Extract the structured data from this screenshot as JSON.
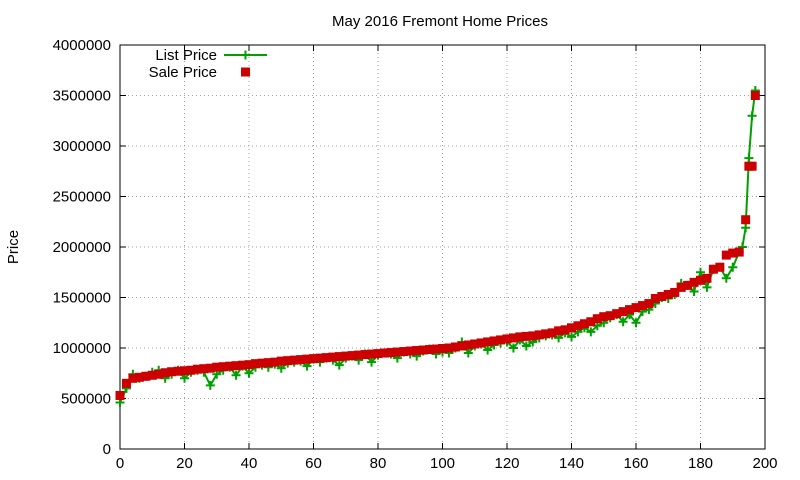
{
  "chart_data": {
    "type": "scatter",
    "title": "May 2016 Fremont Home Prices",
    "xlabel": "",
    "ylabel": "Price",
    "xlim": [
      0,
      200
    ],
    "ylim": [
      0,
      4000000
    ],
    "x_ticks": [
      0,
      20,
      40,
      60,
      80,
      100,
      120,
      140,
      160,
      180,
      200
    ],
    "y_ticks": [
      0,
      500000,
      1000000,
      1500000,
      2000000,
      2500000,
      3000000,
      3500000,
      4000000
    ],
    "x_tick_labels": [
      "0",
      "20",
      "40",
      "60",
      "80",
      "100",
      "120",
      "140",
      "160",
      "180",
      "200"
    ],
    "y_tick_labels": [
      "0",
      "500000",
      "1000000",
      "1500000",
      "2000000",
      "2500000",
      "3000000",
      "3500000",
      "4000000"
    ],
    "grid": true,
    "legend_position": "top-left",
    "series": [
      {
        "name": "List Price",
        "style": "line with plus markers",
        "color": "#00a000",
        "x": [
          0,
          2,
          4,
          6,
          8,
          10,
          12,
          14,
          16,
          18,
          20,
          22,
          24,
          26,
          28,
          30,
          32,
          34,
          36,
          38,
          40,
          42,
          44,
          46,
          48,
          50,
          52,
          54,
          56,
          58,
          60,
          62,
          64,
          66,
          68,
          70,
          72,
          74,
          76,
          78,
          80,
          82,
          84,
          86,
          88,
          90,
          92,
          94,
          96,
          98,
          100,
          102,
          104,
          106,
          108,
          110,
          112,
          114,
          116,
          118,
          120,
          122,
          124,
          126,
          128,
          130,
          132,
          134,
          136,
          138,
          140,
          142,
          144,
          146,
          148,
          150,
          152,
          154,
          156,
          158,
          160,
          162,
          164,
          166,
          168,
          170,
          172,
          174,
          176,
          178,
          180,
          182,
          184,
          186,
          188,
          190,
          192,
          193,
          194,
          195,
          196,
          197
        ],
        "values": [
          460000,
          600000,
          740000,
          700000,
          720000,
          760000,
          780000,
          700000,
          740000,
          780000,
          700000,
          760000,
          780000,
          760000,
          630000,
          740000,
          780000,
          810000,
          730000,
          820000,
          750000,
          810000,
          830000,
          810000,
          840000,
          800000,
          850000,
          860000,
          870000,
          820000,
          890000,
          860000,
          900000,
          880000,
          830000,
          900000,
          920000,
          880000,
          940000,
          860000,
          930000,
          950000,
          940000,
          900000,
          960000,
          940000,
          920000,
          970000,
          990000,
          940000,
          960000,
          950000,
          1000000,
          1060000,
          950000,
          1020000,
          1040000,
          980000,
          1030000,
          1050000,
          1060000,
          1000000,
          1080000,
          1020000,
          1060000,
          1100000,
          1120000,
          1130000,
          1100000,
          1150000,
          1110000,
          1160000,
          1200000,
          1160000,
          1220000,
          1250000,
          1300000,
          1330000,
          1260000,
          1330000,
          1250000,
          1360000,
          1380000,
          1440000,
          1500000,
          1490000,
          1530000,
          1640000,
          1620000,
          1560000,
          1750000,
          1600000,
          1780000,
          1800000,
          1690000,
          1800000,
          1950000,
          2000000,
          2190000,
          2880000,
          3300000,
          3550000
        ]
      },
      {
        "name": "Sale Price",
        "style": "square markers",
        "color": "#cc0000",
        "x": [
          0,
          2,
          4,
          6,
          8,
          10,
          12,
          14,
          16,
          18,
          20,
          22,
          24,
          26,
          28,
          30,
          32,
          34,
          36,
          38,
          40,
          42,
          44,
          46,
          48,
          50,
          52,
          54,
          56,
          58,
          60,
          62,
          64,
          66,
          68,
          70,
          72,
          74,
          76,
          78,
          80,
          82,
          84,
          86,
          88,
          90,
          92,
          94,
          96,
          98,
          100,
          102,
          104,
          106,
          108,
          110,
          112,
          114,
          116,
          118,
          120,
          122,
          124,
          126,
          128,
          130,
          132,
          134,
          136,
          138,
          140,
          142,
          144,
          146,
          148,
          150,
          152,
          154,
          156,
          158,
          160,
          162,
          164,
          166,
          168,
          170,
          172,
          174,
          176,
          178,
          180,
          182,
          184,
          186,
          188,
          190,
          192,
          194,
          195,
          196,
          197
        ],
        "values": [
          530000,
          650000,
          700000,
          710000,
          720000,
          730000,
          740000,
          755000,
          765000,
          770000,
          775000,
          780000,
          790000,
          795000,
          800000,
          810000,
          815000,
          820000,
          825000,
          830000,
          835000,
          845000,
          850000,
          855000,
          860000,
          870000,
          875000,
          880000,
          885000,
          890000,
          895000,
          900000,
          905000,
          910000,
          915000,
          920000,
          925000,
          930000,
          935000,
          940000,
          945000,
          950000,
          955000,
          960000,
          965000,
          970000,
          975000,
          980000,
          985000,
          990000,
          995000,
          1000000,
          1010000,
          1020000,
          1030000,
          1040000,
          1050000,
          1060000,
          1070000,
          1080000,
          1090000,
          1100000,
          1110000,
          1115000,
          1120000,
          1130000,
          1140000,
          1150000,
          1170000,
          1180000,
          1200000,
          1220000,
          1240000,
          1260000,
          1290000,
          1310000,
          1320000,
          1340000,
          1360000,
          1380000,
          1400000,
          1420000,
          1440000,
          1490000,
          1510000,
          1530000,
          1550000,
          1600000,
          1620000,
          1650000,
          1670000,
          1690000,
          1780000,
          1800000,
          1920000,
          1940000,
          1950000,
          2270000,
          2800000,
          2800000,
          3500000
        ]
      }
    ]
  }
}
